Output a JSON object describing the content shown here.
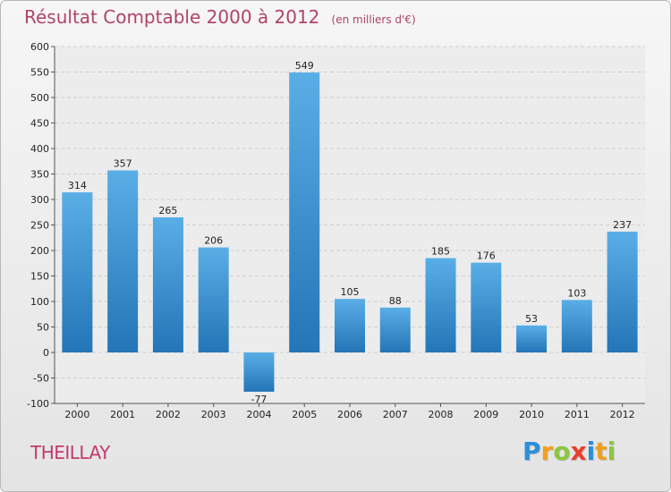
{
  "header": {
    "title": "Résultat Comptable 2000 à 2012",
    "subtitle": "(en milliers d'€)"
  },
  "commune": "THEILLAY",
  "brand": {
    "letters": [
      "P",
      "r",
      "o",
      "x",
      "i",
      "t",
      "i"
    ],
    "colors": [
      "#2c8fd8",
      "#f0a01e",
      "#8cc63f",
      "#e8402a",
      "#2c8fd8",
      "#f0a01e",
      "#8cc63f"
    ]
  },
  "colors": {
    "bar_top": "#5aaee6",
    "bar_bottom": "#2375b6",
    "title": "#b0436b",
    "commune": "#c23a6e"
  },
  "chart_data": {
    "type": "bar",
    "title": "Résultat Comptable 2000 à 2012",
    "subtitle": "(en milliers d'€)",
    "categories": [
      "2000",
      "2001",
      "2002",
      "2003",
      "2004",
      "2005",
      "2006",
      "2007",
      "2008",
      "2009",
      "2010",
      "2011",
      "2012"
    ],
    "values": [
      314,
      357,
      265,
      206,
      -77,
      549,
      105,
      88,
      185,
      176,
      53,
      103,
      237
    ],
    "ylim": [
      -100,
      600
    ],
    "yticks": [
      -100,
      -50,
      0,
      50,
      100,
      150,
      200,
      250,
      300,
      350,
      400,
      450,
      500,
      550,
      600
    ],
    "grid": true,
    "xlabel": "",
    "ylabel": ""
  }
}
